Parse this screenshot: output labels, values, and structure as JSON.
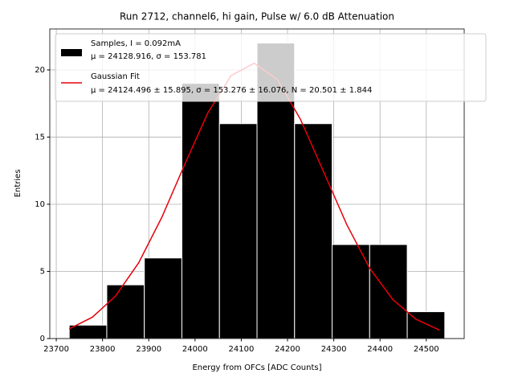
{
  "chart_data": {
    "type": "histogram",
    "title": "Run 2712, channel6, hi gain, Pulse w/ 6.0 dB Attenuation",
    "xlabel": "Energy from OFCs [ADC Counts]",
    "ylabel": "Entries",
    "name": "Samples, I = 0.092mA",
    "stats": "μ = 24128.916, σ = 153.781",
    "color": "#000000",
    "bins": [
      23728,
      23809.2,
      23890.4,
      23971.6,
      24052.8,
      24134,
      24215.2,
      24296.4,
      24377.6,
      24458.8,
      24540
    ],
    "values": [
      1,
      4,
      6,
      19,
      16,
      22,
      16,
      7,
      7,
      2
    ],
    "fit": {
      "name": "Gaussian Fit",
      "stats": "μ = 24124.496 ± 15.895, σ = 153.276 ± 16.076, N = 20.501 ± 1.844",
      "color": "#e8000b",
      "x": [
        23728,
        23778,
        23828,
        23878,
        23928,
        23978,
        24028,
        24078,
        24128,
        24178,
        24228,
        24278,
        24328,
        24378,
        24428,
        24478,
        24528
      ],
      "values": [
        0.72,
        1.59,
        3.16,
        5.63,
        9.01,
        12.98,
        16.82,
        19.58,
        20.5,
        19.29,
        16.32,
        12.42,
        8.49,
        5.22,
        2.89,
        1.43,
        0.64
      ]
    },
    "xlim": [
      23686,
      24582
    ],
    "ylim": [
      0,
      23.05
    ],
    "xticks": [
      23700,
      23800,
      23900,
      24000,
      24100,
      24200,
      24300,
      24400,
      24500
    ],
    "yticks": [
      0,
      5,
      10,
      15,
      20
    ],
    "grid": true,
    "legend": "upper left"
  }
}
